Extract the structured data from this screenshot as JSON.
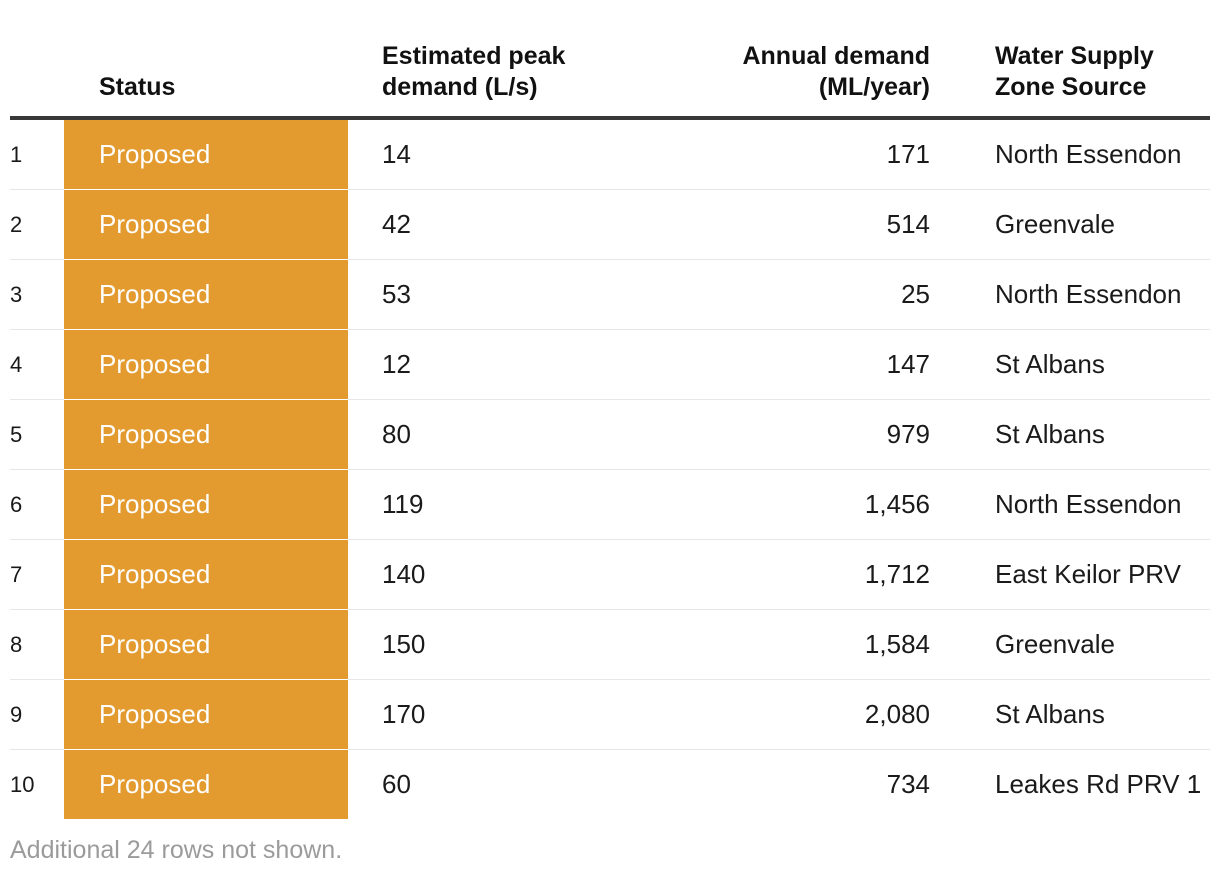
{
  "chart_data": {
    "type": "table",
    "title": "",
    "columns": [
      "",
      "Status",
      "Estimated peak demand (L/s)",
      "Annual demand (ML/year)",
      "Water Supply Zone Source"
    ],
    "rows": [
      [
        "1",
        "Proposed",
        "14",
        "171",
        "North Essendon"
      ],
      [
        "2",
        "Proposed",
        "42",
        "514",
        "Greenvale"
      ],
      [
        "3",
        "Proposed",
        "53",
        "25",
        "North Essendon"
      ],
      [
        "4",
        "Proposed",
        "12",
        "147",
        "St Albans"
      ],
      [
        "5",
        "Proposed",
        "80",
        "979",
        "St Albans"
      ],
      [
        "6",
        "Proposed",
        "119",
        "1,456",
        "North Essendon"
      ],
      [
        "7",
        "Proposed",
        "140",
        "1,712",
        "East Keilor PRV"
      ],
      [
        "8",
        "Proposed",
        "150",
        "1,584",
        "Greenvale"
      ],
      [
        "9",
        "Proposed",
        "170",
        "2,080",
        "St Albans"
      ],
      [
        "10",
        "Proposed",
        "60",
        "734",
        "Leakes Rd PRV 1"
      ]
    ],
    "note": "Additional 24 rows not shown."
  },
  "table": {
    "headers_display": {
      "index": "",
      "status": "Status",
      "peak": "Estimated peak\ndemand (L/s)",
      "annual": "Annual demand\n(ML/year)",
      "zone": "Water Supply\nZone Source"
    }
  },
  "colors": {
    "status_bg": "#E39B2F",
    "status_text": "#ffffff",
    "header_rule": "#383838",
    "row_divider": "#e7e7e7",
    "body_text": "#1a1a1a",
    "note_text": "#9b9b9b"
  }
}
